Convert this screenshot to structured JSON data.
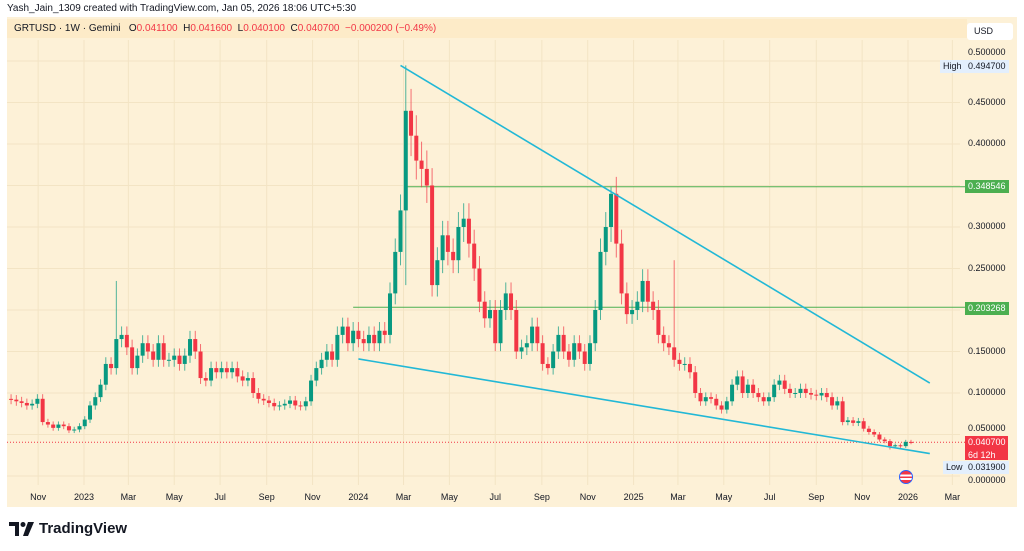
{
  "header": {
    "created_by": "Yash_Jain_1309 created with TradingView.com, Jan 05, 2026 18:06 UTC+5:30"
  },
  "legend": {
    "symbol": "GRTUSD · 1W · Gemini",
    "open_label": "O",
    "open": "0.041100",
    "high_label": "H",
    "high": "0.041600",
    "low_label": "L",
    "low": "0.040100",
    "close_label": "C",
    "close": "0.040700",
    "change": "−0.000200 (−0.49%)"
  },
  "currency_button": "USD",
  "tags": {
    "high_label": "High",
    "high_value": "0.494700",
    "level1": "0.348546",
    "level2": "0.203268",
    "last_price": "0.040700",
    "countdown": "6d 12h",
    "low_label": "Low",
    "low_value": "0.031900"
  },
  "brand": "TradingView",
  "colors": {
    "up": "#089981",
    "down": "#f23645",
    "trendline": "#22b8d6",
    "level": "#4caf50",
    "background": "#fdf1d7"
  },
  "chart_data": {
    "type": "candlestick",
    "interval": "1W",
    "first_week": "2022-09-26",
    "ylim": [
      0,
      0.5
    ],
    "y_ticks": [
      "0.500000",
      "0.450000",
      "0.400000",
      "0.300000",
      "0.250000",
      "0.150000",
      "0.100000",
      "0.050000",
      "0.000000"
    ],
    "x_ticks": [
      {
        "label": "Nov",
        "date": "2022-11-01"
      },
      {
        "label": "2023",
        "date": "2023-01-01"
      },
      {
        "label": "Mar",
        "date": "2023-03-01"
      },
      {
        "label": "May",
        "date": "2023-05-01"
      },
      {
        "label": "Jul",
        "date": "2023-07-01"
      },
      {
        "label": "Sep",
        "date": "2023-09-01"
      },
      {
        "label": "Nov",
        "date": "2023-11-01"
      },
      {
        "label": "2024",
        "date": "2024-01-01"
      },
      {
        "label": "Mar",
        "date": "2024-03-01"
      },
      {
        "label": "May",
        "date": "2024-05-01"
      },
      {
        "label": "Jul",
        "date": "2024-07-01"
      },
      {
        "label": "Sep",
        "date": "2024-09-01"
      },
      {
        "label": "Nov",
        "date": "2024-11-01"
      },
      {
        "label": "2025",
        "date": "2025-01-01"
      },
      {
        "label": "Mar",
        "date": "2025-03-01"
      },
      {
        "label": "May",
        "date": "2025-05-01"
      },
      {
        "label": "Jul",
        "date": "2025-07-01"
      },
      {
        "label": "Sep",
        "date": "2025-09-01"
      },
      {
        "label": "Nov",
        "date": "2025-11-01"
      },
      {
        "label": "2026",
        "date": "2026-01-01"
      },
      {
        "label": "Mar",
        "date": "2026-03-01"
      }
    ],
    "closes": [
      0.092,
      0.09,
      0.088,
      0.085,
      0.087,
      0.093,
      0.065,
      0.062,
      0.058,
      0.062,
      0.06,
      0.055,
      0.056,
      0.06,
      0.068,
      0.085,
      0.095,
      0.11,
      0.135,
      0.13,
      0.165,
      0.17,
      0.155,
      0.13,
      0.145,
      0.16,
      0.15,
      0.14,
      0.16,
      0.14,
      0.14,
      0.145,
      0.135,
      0.145,
      0.165,
      0.15,
      0.118,
      0.115,
      0.13,
      0.125,
      0.13,
      0.125,
      0.13,
      0.12,
      0.115,
      0.118,
      0.1,
      0.093,
      0.091,
      0.088,
      0.084,
      0.085,
      0.087,
      0.091,
      0.085,
      0.084,
      0.09,
      0.115,
      0.13,
      0.14,
      0.15,
      0.14,
      0.17,
      0.18,
      0.16,
      0.175,
      0.165,
      0.16,
      0.17,
      0.16,
      0.175,
      0.17,
      0.22,
      0.27,
      0.32,
      0.44,
      0.41,
      0.38,
      0.37,
      0.35,
      0.23,
      0.26,
      0.29,
      0.27,
      0.26,
      0.3,
      0.31,
      0.28,
      0.25,
      0.21,
      0.19,
      0.2,
      0.16,
      0.2,
      0.22,
      0.2,
      0.15,
      0.155,
      0.16,
      0.18,
      0.16,
      0.135,
      0.13,
      0.15,
      0.17,
      0.15,
      0.14,
      0.16,
      0.15,
      0.135,
      0.16,
      0.2,
      0.27,
      0.3,
      0.34,
      0.28,
      0.22,
      0.195,
      0.2,
      0.21,
      0.235,
      0.21,
      0.2,
      0.17,
      0.16,
      0.155,
      0.14,
      0.135,
      0.135,
      0.125,
      0.1,
      0.09,
      0.095,
      0.093,
      0.085,
      0.08,
      0.09,
      0.11,
      0.12,
      0.1,
      0.11,
      0.1,
      0.095,
      0.09,
      0.095,
      0.11,
      0.115,
      0.105,
      0.1,
      0.1,
      0.105,
      0.1,
      0.098,
      0.097,
      0.1,
      0.095,
      0.085,
      0.09,
      0.065,
      0.067,
      0.064,
      0.066,
      0.057,
      0.053,
      0.05,
      0.044,
      0.042,
      0.036,
      0.037,
      0.036,
      0.0411,
      0.0407
    ],
    "notable_highs": {
      "20": 0.235,
      "75": 0.4947,
      "114": 0.348,
      "126": 0.26
    },
    "notable_lows": {
      "75": 0.23,
      "167": 0.0319
    },
    "trendlines": [
      {
        "from": {
          "date": "2024-02-26",
          "price": 0.4947
        },
        "to": {
          "date": "2026-01-30",
          "price": 0.112
        }
      },
      {
        "from": {
          "date": "2024-01-01",
          "price": 0.141
        },
        "to": {
          "date": "2026-01-30",
          "price": 0.027
        }
      }
    ],
    "horizontal_levels": [
      {
        "price": 0.348546,
        "from": "2024-03-04"
      },
      {
        "price": 0.203268,
        "from": "2023-12-25"
      }
    ],
    "last_price_line": 0.0407
  }
}
